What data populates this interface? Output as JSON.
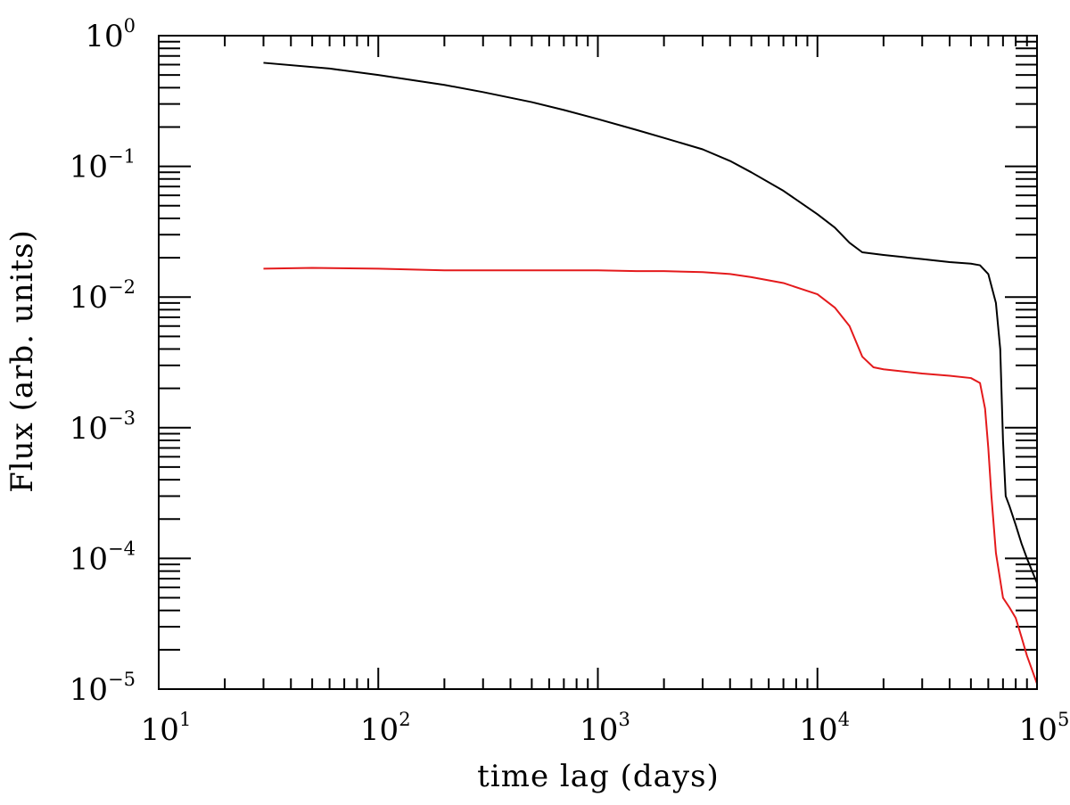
{
  "chart_data": {
    "type": "line",
    "xlabel": "time lag (days)",
    "ylabel": "Flux (arb. units)",
    "x_scale": "log",
    "y_scale": "log",
    "xlim": [
      10,
      100000
    ],
    "ylim": [
      1e-05,
      1
    ],
    "grid": false,
    "x_ticks": [
      {
        "base": "10",
        "exp": "1",
        "value": 10
      },
      {
        "base": "10",
        "exp": "2",
        "value": 100
      },
      {
        "base": "10",
        "exp": "3",
        "value": 1000
      },
      {
        "base": "10",
        "exp": "4",
        "value": 10000
      },
      {
        "base": "10",
        "exp": "5",
        "value": 100000
      }
    ],
    "y_ticks": [
      {
        "base": "10",
        "exp": "0",
        "value": 1
      },
      {
        "base": "10",
        "exp": "−1",
        "value": 0.1
      },
      {
        "base": "10",
        "exp": "−2",
        "value": 0.01
      },
      {
        "base": "10",
        "exp": "−3",
        "value": 0.001
      },
      {
        "base": "10",
        "exp": "−4",
        "value": 0.0001
      },
      {
        "base": "10",
        "exp": "−5",
        "value": 1e-05
      }
    ],
    "series": [
      {
        "color": "#000000",
        "x": [
          30,
          60,
          100,
          200,
          300,
          500,
          700,
          1000,
          1500,
          2000,
          3000,
          4000,
          5000,
          7000,
          10000,
          12000,
          14000,
          16000,
          20000,
          30000,
          40000,
          50000,
          55000,
          60000,
          65000,
          68000,
          70000,
          72000,
          75000,
          80000,
          85000,
          90000,
          95000,
          100000
        ],
        "y": [
          0.62,
          0.56,
          0.5,
          0.42,
          0.37,
          0.31,
          0.27,
          0.23,
          0.19,
          0.165,
          0.135,
          0.11,
          0.09,
          0.065,
          0.043,
          0.034,
          0.026,
          0.022,
          0.021,
          0.0195,
          0.0185,
          0.018,
          0.0175,
          0.015,
          0.009,
          0.004,
          0.0008,
          0.0003,
          0.00025,
          0.00018,
          0.00013,
          0.0001,
          8e-05,
          6.5e-05
        ]
      },
      {
        "color": "#e41a1c",
        "x": [
          30,
          50,
          100,
          200,
          300,
          500,
          700,
          1000,
          1500,
          2000,
          3000,
          4000,
          5000,
          7000,
          10000,
          12000,
          14000,
          16000,
          18000,
          20000,
          30000,
          40000,
          50000,
          55000,
          58000,
          60000,
          62000,
          65000,
          70000,
          75000,
          80000,
          85000,
          90000,
          95000,
          100000
        ],
        "y": [
          0.0165,
          0.0167,
          0.0165,
          0.016,
          0.016,
          0.016,
          0.016,
          0.016,
          0.0158,
          0.0158,
          0.0155,
          0.015,
          0.0142,
          0.0128,
          0.0105,
          0.0083,
          0.006,
          0.0035,
          0.0029,
          0.0028,
          0.0026,
          0.0025,
          0.0024,
          0.0022,
          0.0014,
          0.0007,
          0.0003,
          0.00011,
          5e-05,
          4.2e-05,
          3.5e-05,
          2.5e-05,
          1.8e-05,
          1.4e-05,
          1.1e-05
        ]
      }
    ]
  }
}
